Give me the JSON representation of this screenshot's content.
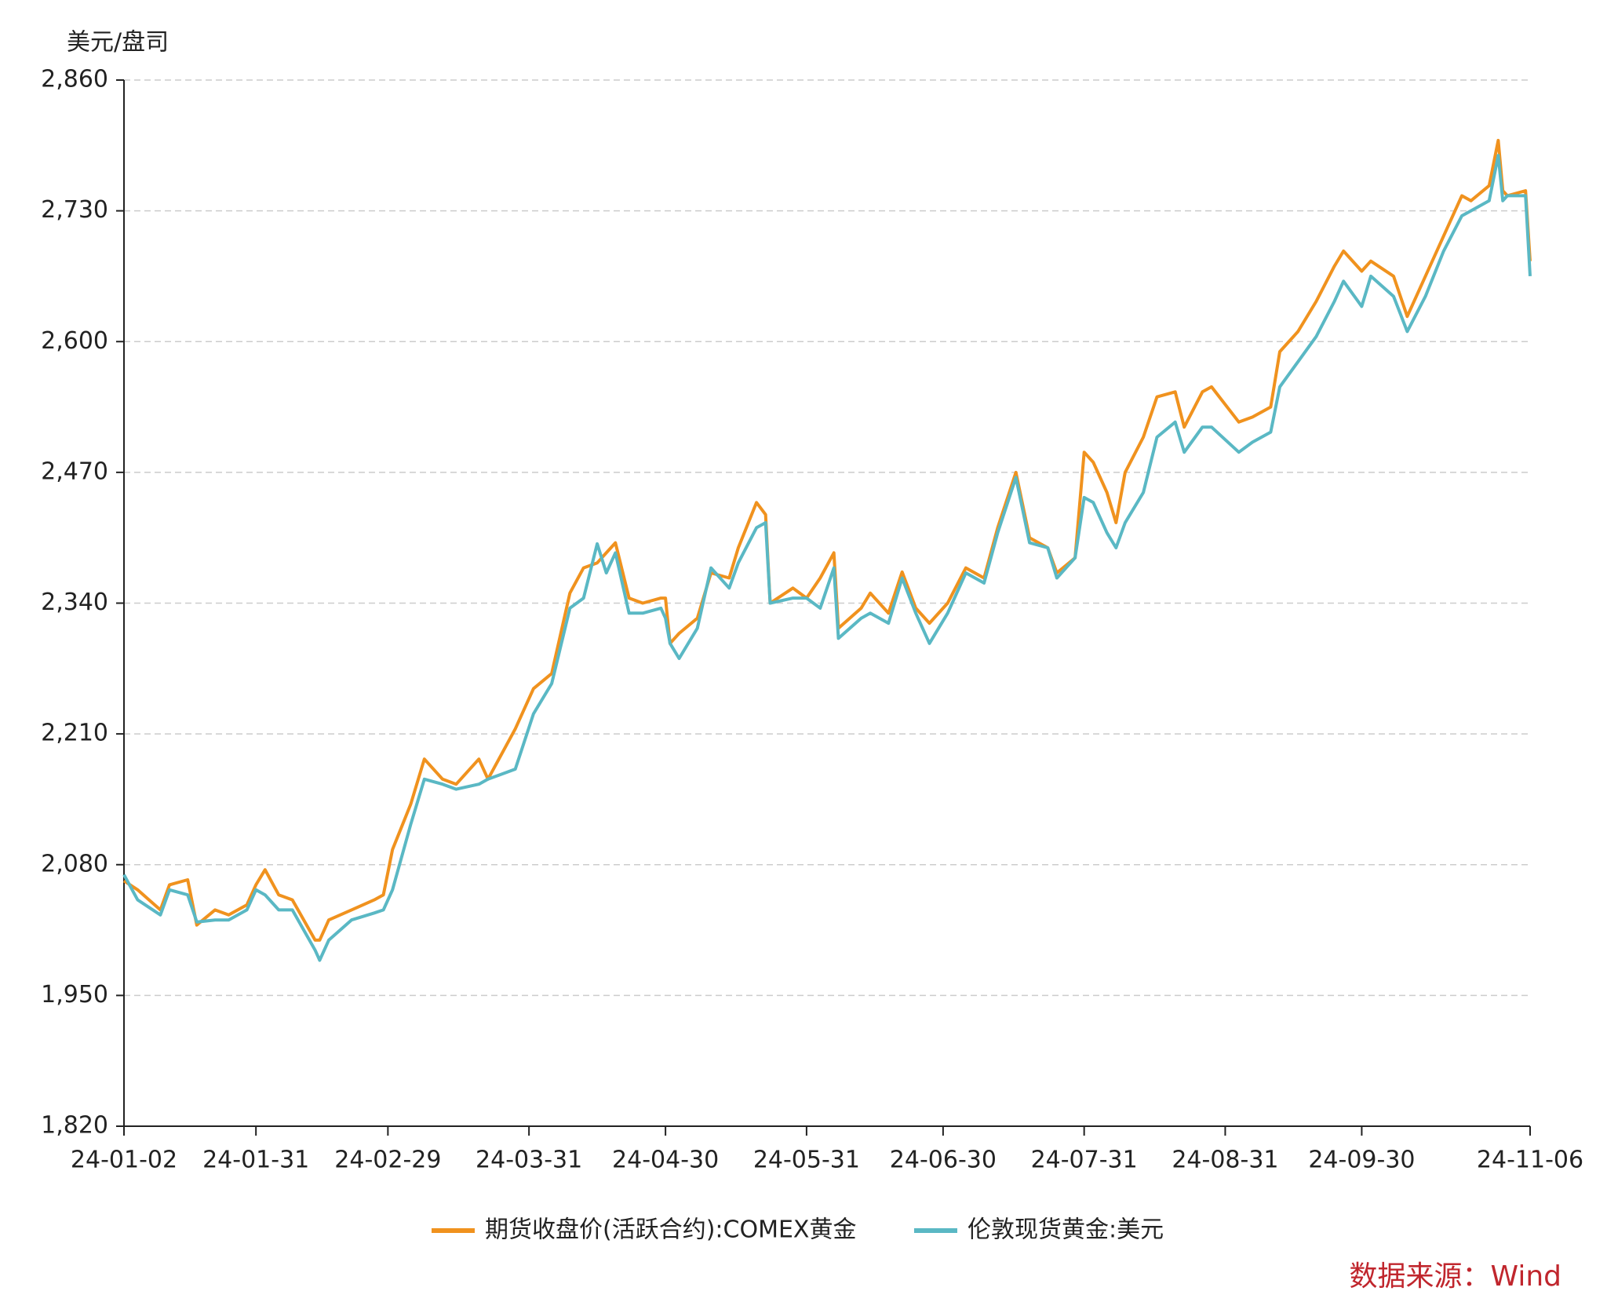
{
  "chart_data": {
    "type": "line",
    "y_axis_label": "美元/盘司",
    "source": "数据来源：Wind",
    "x": [
      "24-01-02",
      "24-01-05",
      "24-01-10",
      "24-01-12",
      "24-01-16",
      "24-01-18",
      "24-01-22",
      "24-01-25",
      "24-01-29",
      "24-01-31",
      "24-02-02",
      "24-02-05",
      "24-02-08",
      "24-02-13",
      "24-02-14",
      "24-02-16",
      "24-02-21",
      "24-02-26",
      "24-02-28",
      "24-03-01",
      "24-03-05",
      "24-03-08",
      "24-03-12",
      "24-03-15",
      "24-03-20",
      "24-03-22",
      "24-03-28",
      "24-04-01",
      "24-04-05",
      "24-04-09",
      "24-04-12",
      "24-04-15",
      "24-04-17",
      "24-04-19",
      "24-04-22",
      "24-04-25",
      "24-04-29",
      "24-04-30",
      "24-05-01",
      "24-05-03",
      "24-05-07",
      "24-05-10",
      "24-05-14",
      "24-05-16",
      "24-05-20",
      "24-05-22",
      "24-05-23",
      "24-05-28",
      "24-05-31",
      "24-06-03",
      "24-06-06",
      "24-06-07",
      "24-06-12",
      "24-06-14",
      "24-06-18",
      "24-06-21",
      "24-06-24",
      "24-06-27",
      "24-07-01",
      "24-07-05",
      "24-07-09",
      "24-07-12",
      "24-07-16",
      "24-07-19",
      "24-07-23",
      "24-07-25",
      "24-07-29",
      "24-07-31",
      "24-08-02",
      "24-08-05",
      "24-08-07",
      "24-08-09",
      "24-08-13",
      "24-08-16",
      "24-08-20",
      "24-08-22",
      "24-08-26",
      "24-08-28",
      "24-09-03",
      "24-09-06",
      "24-09-10",
      "24-09-12",
      "24-09-16",
      "24-09-20",
      "24-09-24",
      "24-09-26",
      "24-09-30",
      "24-10-02",
      "24-10-07",
      "24-10-10",
      "24-10-14",
      "24-10-18",
      "24-10-22",
      "24-10-24",
      "24-10-28",
      "24-10-30",
      "24-10-31",
      "24-11-01",
      "24-11-05",
      "24-11-06"
    ],
    "series": [
      {
        "name": "期货收盘价(活跃合约):COMEX黄金",
        "color": "#f0921e",
        "values": [
          2064,
          2055,
          2035,
          2060,
          2065,
          2020,
          2035,
          2030,
          2040,
          2060,
          2075,
          2050,
          2045,
          2005,
          2005,
          2025,
          2035,
          2045,
          2050,
          2095,
          2140,
          2185,
          2165,
          2160,
          2185,
          2165,
          2215,
          2255,
          2270,
          2350,
          2375,
          2380,
          2390,
          2400,
          2345,
          2340,
          2345,
          2345,
          2300,
          2310,
          2325,
          2370,
          2365,
          2395,
          2440,
          2428,
          2340,
          2355,
          2345,
          2365,
          2390,
          2315,
          2335,
          2350,
          2330,
          2371,
          2335,
          2320,
          2340,
          2375,
          2365,
          2415,
          2470,
          2405,
          2395,
          2370,
          2385,
          2490,
          2480,
          2450,
          2420,
          2470,
          2505,
          2545,
          2550,
          2515,
          2550,
          2555,
          2520,
          2525,
          2535,
          2590,
          2610,
          2640,
          2675,
          2690,
          2670,
          2680,
          2665,
          2625,
          2665,
          2705,
          2745,
          2740,
          2755,
          2800,
          2750,
          2745,
          2750,
          2680
        ]
      },
      {
        "name": "伦敦现货黄金:美元",
        "color": "#5ab8c4",
        "values": [
          2070,
          2045,
          2030,
          2055,
          2050,
          2023,
          2025,
          2025,
          2035,
          2055,
          2050,
          2035,
          2035,
          1995,
          1985,
          2005,
          2025,
          2032,
          2035,
          2055,
          2120,
          2165,
          2160,
          2155,
          2160,
          2165,
          2175,
          2230,
          2260,
          2335,
          2345,
          2399,
          2370,
          2390,
          2330,
          2330,
          2335,
          2325,
          2300,
          2285,
          2315,
          2375,
          2355,
          2380,
          2415,
          2420,
          2340,
          2345,
          2345,
          2335,
          2375,
          2305,
          2325,
          2330,
          2320,
          2365,
          2330,
          2300,
          2330,
          2370,
          2360,
          2410,
          2465,
          2400,
          2395,
          2365,
          2385,
          2445,
          2440,
          2410,
          2395,
          2420,
          2450,
          2505,
          2520,
          2490,
          2515,
          2515,
          2490,
          2500,
          2510,
          2555,
          2580,
          2605,
          2640,
          2660,
          2635,
          2665,
          2645,
          2610,
          2645,
          2690,
          2725,
          2730,
          2740,
          2785,
          2740,
          2745,
          2745,
          2665
        ]
      }
    ],
    "xlim": [
      "24-01-02",
      "24-11-06"
    ],
    "xticks": [
      "24-01-02",
      "24-01-31",
      "24-02-29",
      "24-03-31",
      "24-04-30",
      "24-05-31",
      "24-06-30",
      "24-07-31",
      "24-08-31",
      "24-09-30",
      "24-11-06"
    ],
    "ylim": [
      1820,
      2860
    ],
    "yticks": [
      {
        "value": 1820,
        "label": "1,820"
      },
      {
        "value": 1950,
        "label": "1,950"
      },
      {
        "value": 2080,
        "label": "2,080"
      },
      {
        "value": 2210,
        "label": "2,210"
      },
      {
        "value": 2340,
        "label": "2,340"
      },
      {
        "value": 2470,
        "label": "2,470"
      },
      {
        "value": 2600,
        "label": "2,600"
      },
      {
        "value": 2730,
        "label": "2,730"
      },
      {
        "value": 2860,
        "label": "2,860"
      }
    ],
    "grid": true,
    "legend": "bottom"
  }
}
